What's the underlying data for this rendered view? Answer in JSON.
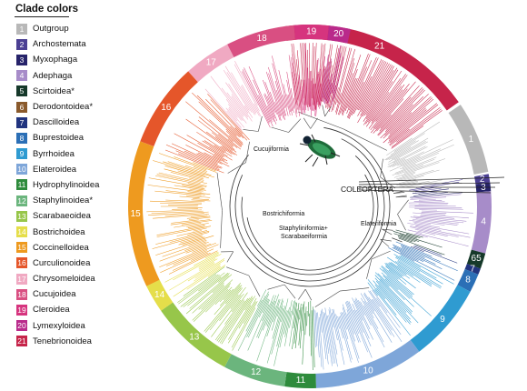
{
  "legend": {
    "title": "Clade colors",
    "items": [
      {
        "num": "1",
        "label": "Outgroup",
        "color": "#b8b8b8"
      },
      {
        "num": "2",
        "label": "Archostemata",
        "color": "#4b3f93"
      },
      {
        "num": "3",
        "label": "Myxophaga",
        "color": "#26236a"
      },
      {
        "num": "4",
        "label": "Adephaga",
        "color": "#a78cc9"
      },
      {
        "num": "5",
        "label": "Scirtoidea*",
        "color": "#16392a"
      },
      {
        "num": "6",
        "label": "Derodontoidea*",
        "color": "#8a5a2c"
      },
      {
        "num": "7",
        "label": "Dascilloidea",
        "color": "#21347f"
      },
      {
        "num": "8",
        "label": "Buprestoidea",
        "color": "#2b6fb6"
      },
      {
        "num": "9",
        "label": "Byrrhoidea",
        "color": "#2f9bd1"
      },
      {
        "num": "10",
        "label": "Elateroidea",
        "color": "#7ea6d9"
      },
      {
        "num": "11",
        "label": "Hydrophylinoidea",
        "color": "#2e8b3c"
      },
      {
        "num": "12",
        "label": "Staphylinoidea*",
        "color": "#6bb57d"
      },
      {
        "num": "13",
        "label": "Scarabaeoidea",
        "color": "#97c64a"
      },
      {
        "num": "14",
        "label": "Bostrichoidea",
        "color": "#e5de4a"
      },
      {
        "num": "15",
        "label": "Coccinelloidea",
        "color": "#ee9a1f"
      },
      {
        "num": "16",
        "label": "Curculionoidea",
        "color": "#e5562a"
      },
      {
        "num": "17",
        "label": "Chrysomeloidea",
        "color": "#f0a9c2"
      },
      {
        "num": "18",
        "label": "Cucujoidea",
        "color": "#d94f82"
      },
      {
        "num": "19",
        "label": "Cleroidea",
        "color": "#d6347e"
      },
      {
        "num": "20",
        "label": "Lymexyloidea",
        "color": "#b92a8b"
      },
      {
        "num": "21",
        "label": "Tenebrionoidea",
        "color": "#c6244a"
      }
    ]
  },
  "ring": [
    {
      "num": "21",
      "color": "#c6244a"
    },
    {
      "num": "1",
      "color": "#b8b8b8"
    },
    {
      "num": "2",
      "color": "#4b3f93"
    },
    {
      "num": "3",
      "color": "#26236a"
    },
    {
      "num": "4",
      "color": "#a78cc9"
    },
    {
      "num": "65",
      "color": "#16392a"
    },
    {
      "num": "7",
      "color": "#21347f"
    },
    {
      "num": "8",
      "color": "#2b6fb6"
    },
    {
      "num": "9",
      "color": "#2f9bd1"
    },
    {
      "num": "10",
      "color": "#7ea6d9"
    },
    {
      "num": "11",
      "color": "#2e8b3c"
    },
    {
      "num": "12",
      "color": "#6bb57d"
    },
    {
      "num": "13",
      "color": "#97c64a"
    },
    {
      "num": "14",
      "color": "#e5de4a"
    },
    {
      "num": "15",
      "color": "#ee9a1f"
    },
    {
      "num": "16",
      "color": "#e5562a"
    },
    {
      "num": "17",
      "color": "#f0a9c2"
    },
    {
      "num": "18",
      "color": "#d94f82"
    },
    {
      "num": "19",
      "color": "#d6347e"
    },
    {
      "num": "20",
      "color": "#b92a8b"
    }
  ],
  "tree_labels": {
    "coleoptera": "COLEOPTERA",
    "cucujiformia": "Cucujiformia",
    "bostrichiformia": "Bostrichiformia",
    "staph_scarab_1": "Staphyliniformia+",
    "staph_scarab_2": "Scarabaeiformia",
    "elateriformia": "Elateriformia"
  }
}
